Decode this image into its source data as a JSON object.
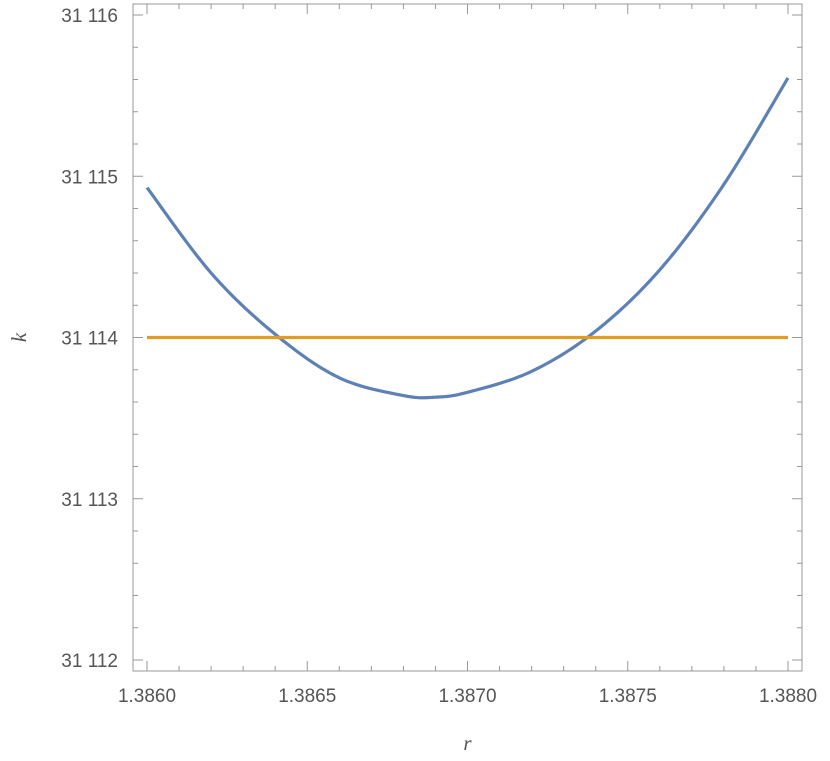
{
  "chart_data": {
    "type": "line",
    "xlabel": "r",
    "ylabel": "k",
    "xlim": [
      1.386,
      1.388
    ],
    "ylim": [
      31112,
      31116.1
    ],
    "x_ticks": [
      {
        "value": 1.386,
        "label": "1.3860"
      },
      {
        "value": 1.3865,
        "label": "1.3865"
      },
      {
        "value": 1.387,
        "label": "1.3870"
      },
      {
        "value": 1.3875,
        "label": "1.3875"
      },
      {
        "value": 1.388,
        "label": "1.3880"
      }
    ],
    "y_ticks": [
      {
        "value": 31112,
        "label": "31 112"
      },
      {
        "value": 31113,
        "label": "31 113"
      },
      {
        "value": 31114,
        "label": "31 114"
      },
      {
        "value": 31115,
        "label": "31 115"
      },
      {
        "value": 31116,
        "label": "31 116"
      }
    ],
    "grid": false,
    "series": [
      {
        "color": "#5e81b5",
        "x": [
          1.386,
          1.3862,
          1.3864,
          1.3866,
          1.3868,
          1.3869,
          1.387,
          1.3872,
          1.3874,
          1.3876,
          1.3878,
          1.388
        ],
        "y": [
          31114.93,
          31114.4,
          31114.02,
          31113.75,
          31113.64,
          31113.63,
          31113.66,
          31113.79,
          31114.04,
          31114.42,
          31114.95,
          31115.61
        ]
      },
      {
        "color": "#e19c24",
        "x": [
          1.386,
          1.388
        ],
        "y": [
          31114,
          31114
        ]
      }
    ]
  }
}
